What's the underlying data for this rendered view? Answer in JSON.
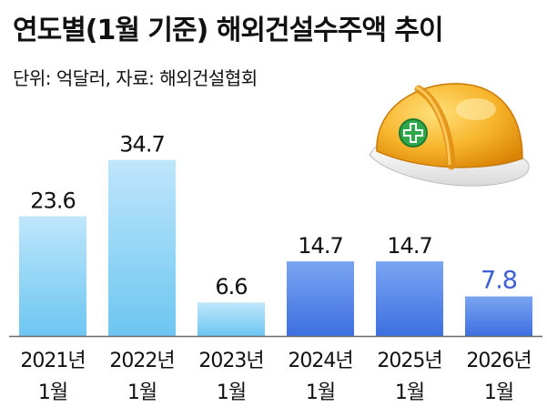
{
  "header": {
    "title": "연도별(1월 기준) 해외건설수주액 추이",
    "subtitle": "단위: 억달러, 자료: 해외건설협회"
  },
  "chart_data": {
    "type": "bar",
    "title": "연도별(1월 기준) 해외건설수주액 추이",
    "unit": "억달러",
    "source": "해외건설협회",
    "categories": [
      [
        "2021년",
        "1월"
      ],
      [
        "2022년",
        "1월"
      ],
      [
        "2023년",
        "1월"
      ],
      [
        "2024년",
        "1월"
      ],
      [
        "2025년",
        "1월"
      ],
      [
        "2026년",
        "1월"
      ]
    ],
    "values": [
      23.6,
      34.7,
      6.6,
      14.7,
      14.7,
      7.8
    ],
    "value_labels": [
      "23.6",
      "34.7",
      "6.6",
      "14.7",
      "14.7",
      "7.8"
    ],
    "highlight_index": 5,
    "ylim": [
      0,
      35
    ],
    "grid": false,
    "colors": {
      "bar_light_top": "#bfe6fb",
      "bar_light_bottom": "#6cc6f1",
      "bar_blue_top": "#7aa5f2",
      "bar_blue_bottom": "#3e6fe0",
      "highlight_label": "#3d5fd8",
      "baseline": "#6a6a6a"
    },
    "bar_styles": [
      "light",
      "light",
      "light",
      "blue",
      "blue",
      "blue"
    ]
  },
  "decor": {
    "helmet_icon": "hard-hat-icon",
    "helmet_color": "#f4a316",
    "emblem_color": "#2ea84a"
  }
}
